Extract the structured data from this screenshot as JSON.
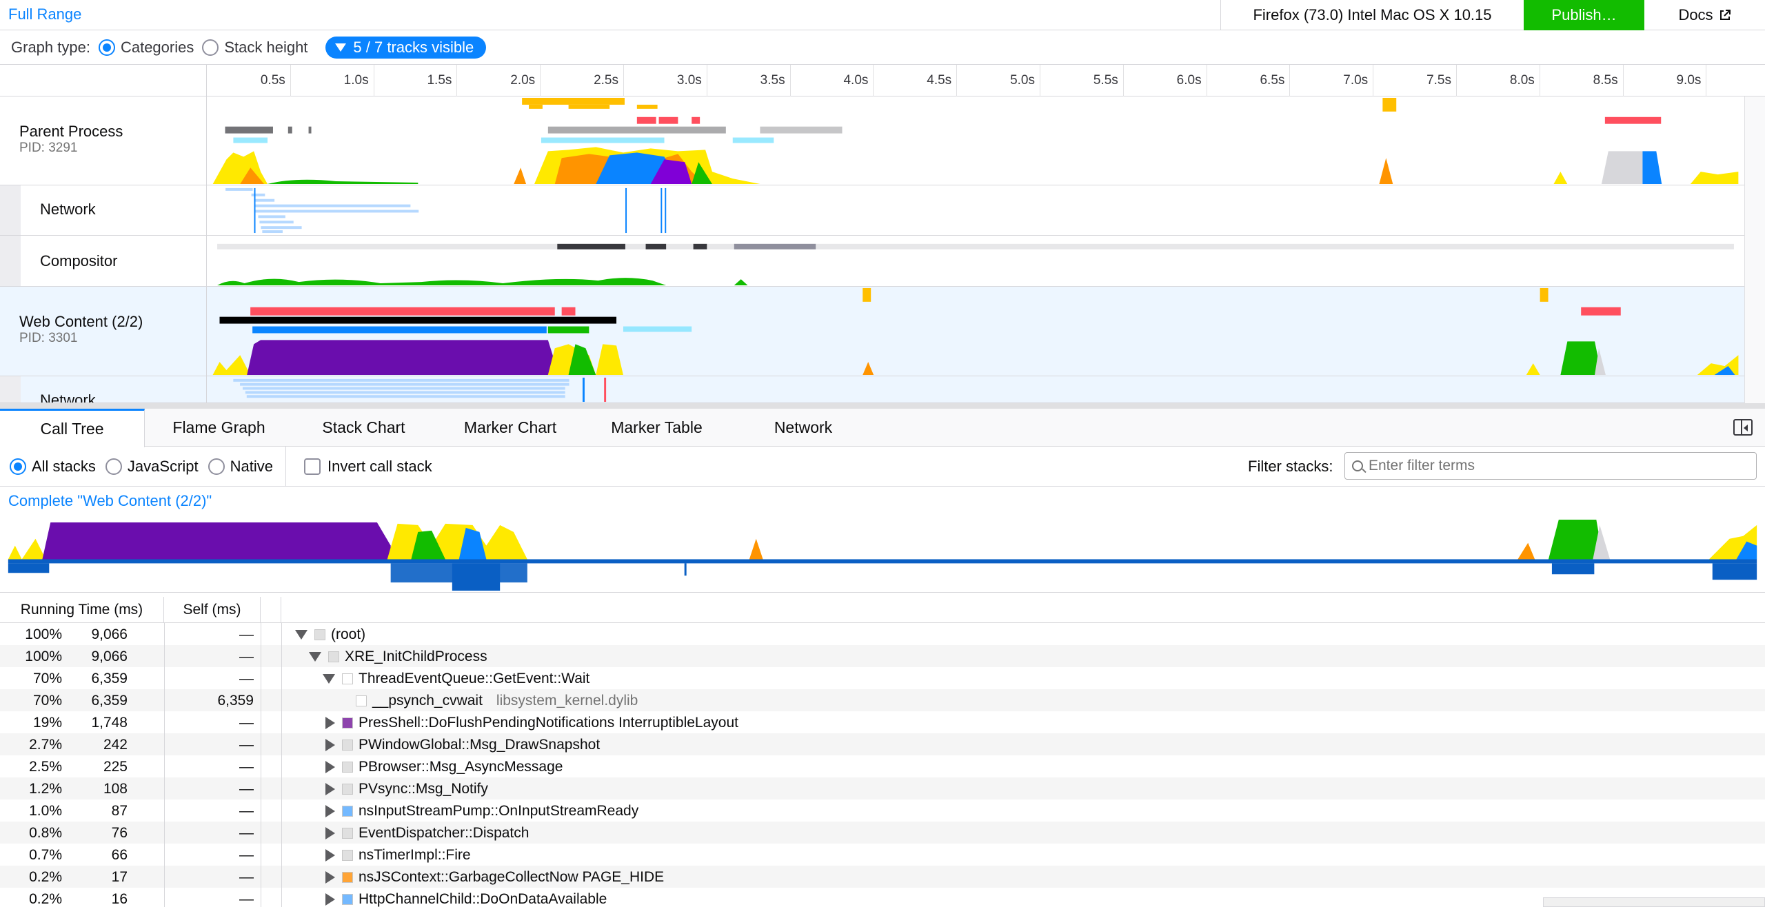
{
  "topbar": {
    "full_range": "Full Range",
    "platform": "Firefox (73.0) Intel Mac OS X 10.15",
    "publish": "Publish…",
    "docs": "Docs"
  },
  "graph_type": {
    "label": "Graph type:",
    "options": [
      "Categories",
      "Stack height"
    ],
    "selected": "Categories",
    "tracks_visible": "5 / 7 tracks visible"
  },
  "ruler": {
    "ticks": [
      "0.5s",
      "1.0s",
      "1.5s",
      "2.0s",
      "2.5s",
      "3.0s",
      "3.5s",
      "4.0s",
      "4.5s",
      "5.0s",
      "5.5s",
      "6.0s",
      "6.5s",
      "7.0s",
      "7.5s",
      "8.0s",
      "8.5s",
      "9.0s"
    ]
  },
  "tracks": [
    {
      "name": "Parent Process",
      "pid": "PID: 3291"
    },
    {
      "name": "Network"
    },
    {
      "name": "Compositor"
    },
    {
      "name": "Web Content (2/2)",
      "pid": "PID: 3301",
      "selected": true
    },
    {
      "name": "Network"
    }
  ],
  "tabs": [
    "Call Tree",
    "Flame Graph",
    "Stack Chart",
    "Marker Chart",
    "Marker Table",
    "Network"
  ],
  "active_tab": "Call Tree",
  "settings": {
    "stack_options": [
      "All stacks",
      "JavaScript",
      "Native"
    ],
    "selected_stack": "All stacks",
    "invert_label": "Invert call stack",
    "filter_label": "Filter stacks:",
    "filter_placeholder": "Enter filter terms"
  },
  "breadcrumb": "Complete \"Web Content (2/2)\"",
  "tree_headers": {
    "running": "Running Time (ms)",
    "self": "Self (ms)"
  },
  "tree_rows": [
    {
      "pct": "100%",
      "rt": "9,066",
      "self": "—",
      "name": "(root)",
      "lib": "",
      "twisty": "open",
      "depth": 0,
      "color": "#e0e0e0"
    },
    {
      "pct": "100%",
      "rt": "9,066",
      "self": "—",
      "name": "XRE_InitChildProcess",
      "lib": "",
      "twisty": "open",
      "depth": 1,
      "color": "#e0e0e0"
    },
    {
      "pct": "70%",
      "rt": "6,359",
      "self": "—",
      "name": "ThreadEventQueue::GetEvent::Wait",
      "lib": "",
      "twisty": "open",
      "depth": 2,
      "color": "#ffffff"
    },
    {
      "pct": "70%",
      "rt": "6,359",
      "self": "6,359",
      "name": "__psynch_cvwait",
      "lib": "libsystem_kernel.dylib",
      "twisty": "none",
      "depth": 3,
      "color": "#ffffff"
    },
    {
      "pct": "19%",
      "rt": "1,748",
      "self": "—",
      "name": "PresShell::DoFlushPendingNotifications InterruptibleLayout",
      "lib": "",
      "twisty": "closed",
      "depth": 2,
      "color": "#8e44ad"
    },
    {
      "pct": "2.7%",
      "rt": "242",
      "self": "—",
      "name": "PWindowGlobal::Msg_DrawSnapshot",
      "lib": "",
      "twisty": "closed",
      "depth": 2,
      "color": "#e0e0e0"
    },
    {
      "pct": "2.5%",
      "rt": "225",
      "self": "—",
      "name": "PBrowser::Msg_AsyncMessage",
      "lib": "",
      "twisty": "closed",
      "depth": 2,
      "color": "#e0e0e0"
    },
    {
      "pct": "1.2%",
      "rt": "108",
      "self": "—",
      "name": "PVsync::Msg_Notify",
      "lib": "",
      "twisty": "closed",
      "depth": 2,
      "color": "#e0e0e0"
    },
    {
      "pct": "1.0%",
      "rt": "87",
      "self": "—",
      "name": "nsInputStreamPump::OnInputStreamReady",
      "lib": "",
      "twisty": "closed",
      "depth": 2,
      "color": "#74b9ff"
    },
    {
      "pct": "0.8%",
      "rt": "76",
      "self": "—",
      "name": "EventDispatcher::Dispatch",
      "lib": "",
      "twisty": "closed",
      "depth": 2,
      "color": "#e0e0e0"
    },
    {
      "pct": "0.7%",
      "rt": "66",
      "self": "—",
      "name": "nsTimerImpl::Fire",
      "lib": "",
      "twisty": "closed",
      "depth": 2,
      "color": "#e0e0e0"
    },
    {
      "pct": "0.2%",
      "rt": "17",
      "self": "—",
      "name": "nsJSContext::GarbageCollectNow PAGE_HIDE",
      "lib": "",
      "twisty": "closed",
      "depth": 2,
      "color": "#ffa436"
    },
    {
      "pct": "0.2%",
      "rt": "16",
      "self": "—",
      "name": "HttpChannelChild::DoOnDataAvailable",
      "lib": "",
      "twisty": "closed",
      "depth": 2,
      "color": "#74b9ff"
    }
  ],
  "colors": {
    "accent": "#0a84ff",
    "publish": "#12bc00",
    "js_yellow": "#ffe900",
    "layout_purple": "#6a0dad",
    "gc_orange": "#ff9400",
    "graphics_green": "#12bc00",
    "dom_blue": "#0a84ff"
  }
}
